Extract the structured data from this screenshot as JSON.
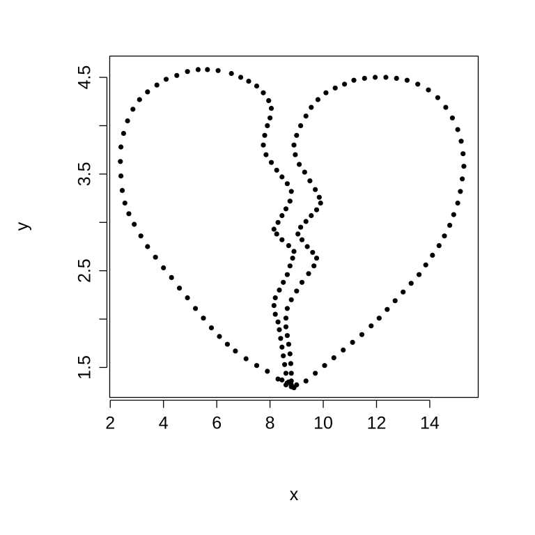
{
  "chart_data": {
    "type": "scatter",
    "title": "",
    "xlabel": "x",
    "ylabel": "y",
    "xlim": [
      1.98,
      15.82
    ],
    "ylim": [
      1.19,
      4.72
    ],
    "x_ticks": [
      2,
      4,
      6,
      8,
      10,
      12,
      14
    ],
    "y_ticks": [
      1.5,
      2.0,
      2.5,
      3.0,
      3.5,
      4.0,
      4.5
    ],
    "y_tick_labels": [
      "1.5",
      "",
      "2.5",
      "",
      "3.5",
      "",
      "4.5"
    ],
    "grid": false,
    "legend": "none",
    "point_color": "#000000",
    "series": [
      {
        "values": [
          [
            8.9,
            1.29
          ],
          [
            8.6,
            1.32
          ],
          [
            8.3,
            1.38
          ],
          [
            7.9,
            1.46
          ],
          [
            7.5,
            1.52
          ],
          [
            7.1,
            1.59
          ],
          [
            6.7,
            1.67
          ],
          [
            6.4,
            1.74
          ],
          [
            6.1,
            1.82
          ],
          [
            5.8,
            1.91
          ],
          [
            5.5,
            2.01
          ],
          [
            5.2,
            2.11
          ],
          [
            4.9,
            2.22
          ],
          [
            4.6,
            2.32
          ],
          [
            4.3,
            2.43
          ],
          [
            4.0,
            2.53
          ],
          [
            3.7,
            2.64
          ],
          [
            3.4,
            2.75
          ],
          [
            3.15,
            2.86
          ],
          [
            2.9,
            2.98
          ],
          [
            2.7,
            3.09
          ],
          [
            2.55,
            3.2
          ],
          [
            2.45,
            3.33
          ],
          [
            2.4,
            3.48
          ],
          [
            2.38,
            3.63
          ],
          [
            2.4,
            3.78
          ],
          [
            2.5,
            3.92
          ],
          [
            2.65,
            4.05
          ],
          [
            2.85,
            4.17
          ],
          [
            3.1,
            4.27
          ],
          [
            3.4,
            4.35
          ],
          [
            3.75,
            4.42
          ],
          [
            4.1,
            4.48
          ],
          [
            4.5,
            4.52
          ],
          [
            4.9,
            4.56
          ],
          [
            5.3,
            4.58
          ],
          [
            5.65,
            4.58
          ],
          [
            6.05,
            4.57
          ],
          [
            6.55,
            4.54
          ],
          [
            6.9,
            4.5
          ],
          [
            7.2,
            4.46
          ],
          [
            7.5,
            4.41
          ],
          [
            7.75,
            4.34
          ],
          [
            7.95,
            4.26
          ],
          [
            8.05,
            4.18
          ],
          [
            8.0,
            4.08
          ],
          [
            7.9,
            4.0
          ],
          [
            7.8,
            3.9
          ],
          [
            7.75,
            3.8
          ],
          [
            7.85,
            3.7
          ],
          [
            8.05,
            3.62
          ],
          [
            8.25,
            3.54
          ],
          [
            8.45,
            3.47
          ],
          [
            8.65,
            3.4
          ],
          [
            8.8,
            3.32
          ],
          [
            8.75,
            3.22
          ],
          [
            8.6,
            3.14
          ],
          [
            8.45,
            3.07
          ],
          [
            8.3,
            3.0
          ],
          [
            8.15,
            2.93
          ],
          [
            8.25,
            2.88
          ],
          [
            8.45,
            2.82
          ],
          [
            8.7,
            2.76
          ],
          [
            8.9,
            2.7
          ],
          [
            8.85,
            2.63
          ],
          [
            8.75,
            2.55
          ],
          [
            8.65,
            2.46
          ],
          [
            8.5,
            2.38
          ],
          [
            8.35,
            2.3
          ],
          [
            8.2,
            2.22
          ],
          [
            8.15,
            2.14
          ],
          [
            8.2,
            2.05
          ],
          [
            8.3,
            1.97
          ],
          [
            8.35,
            1.89
          ],
          [
            8.4,
            1.8
          ],
          [
            8.45,
            1.71
          ],
          [
            8.5,
            1.62
          ],
          [
            8.55,
            1.53
          ],
          [
            8.6,
            1.44
          ],
          [
            8.7,
            1.35
          ],
          [
            8.8,
            1.3
          ],
          [
            9.0,
            1.32
          ],
          [
            9.35,
            1.36
          ],
          [
            9.7,
            1.44
          ],
          [
            10.05,
            1.52
          ],
          [
            10.4,
            1.6
          ],
          [
            10.75,
            1.68
          ],
          [
            11.1,
            1.76
          ],
          [
            11.45,
            1.84
          ],
          [
            11.8,
            1.93
          ],
          [
            12.1,
            2.01
          ],
          [
            12.4,
            2.1
          ],
          [
            12.7,
            2.19
          ],
          [
            13.0,
            2.28
          ],
          [
            13.3,
            2.37
          ],
          [
            13.6,
            2.46
          ],
          [
            13.85,
            2.56
          ],
          [
            14.1,
            2.66
          ],
          [
            14.35,
            2.76
          ],
          [
            14.55,
            2.86
          ],
          [
            14.75,
            2.97
          ],
          [
            14.9,
            3.08
          ],
          [
            15.05,
            3.2
          ],
          [
            15.15,
            3.32
          ],
          [
            15.22,
            3.45
          ],
          [
            15.28,
            3.58
          ],
          [
            15.25,
            3.71
          ],
          [
            15.18,
            3.84
          ],
          [
            15.05,
            3.96
          ],
          [
            14.85,
            4.08
          ],
          [
            14.6,
            4.19
          ],
          [
            14.3,
            4.29
          ],
          [
            13.95,
            4.37
          ],
          [
            13.55,
            4.43
          ],
          [
            13.15,
            4.47
          ],
          [
            12.75,
            4.49
          ],
          [
            12.35,
            4.5
          ],
          [
            11.95,
            4.5
          ],
          [
            11.55,
            4.49
          ],
          [
            11.15,
            4.47
          ],
          [
            10.8,
            4.43
          ],
          [
            10.45,
            4.39
          ],
          [
            10.1,
            4.34
          ],
          [
            9.8,
            4.27
          ],
          [
            9.55,
            4.19
          ],
          [
            9.35,
            4.1
          ],
          [
            9.15,
            4.0
          ],
          [
            9.0,
            3.9
          ],
          [
            8.9,
            3.8
          ],
          [
            8.95,
            3.7
          ],
          [
            9.1,
            3.6
          ],
          [
            9.3,
            3.52
          ],
          [
            9.5,
            3.43
          ],
          [
            9.7,
            3.34
          ],
          [
            9.85,
            3.26
          ],
          [
            9.9,
            3.2
          ],
          [
            9.75,
            3.13
          ],
          [
            9.55,
            3.07
          ],
          [
            9.35,
            3.01
          ],
          [
            9.15,
            2.95
          ],
          [
            9.05,
            2.88
          ],
          [
            9.2,
            2.82
          ],
          [
            9.4,
            2.75
          ],
          [
            9.6,
            2.69
          ],
          [
            9.75,
            2.63
          ],
          [
            9.65,
            2.55
          ],
          [
            9.45,
            2.47
          ],
          [
            9.2,
            2.38
          ],
          [
            9.0,
            2.29
          ],
          [
            8.8,
            2.2
          ],
          [
            8.65,
            2.11
          ],
          [
            8.6,
            2.01
          ],
          [
            8.6,
            1.92
          ],
          [
            8.65,
            1.83
          ],
          [
            8.7,
            1.74
          ],
          [
            8.75,
            1.64
          ],
          [
            8.78,
            1.54
          ],
          [
            8.8,
            1.44
          ],
          [
            8.8,
            1.36
          ],
          [
            8.8,
            1.32
          ],
          [
            8.65,
            1.34
          ],
          [
            8.45,
            1.37
          ]
        ]
      }
    ]
  }
}
